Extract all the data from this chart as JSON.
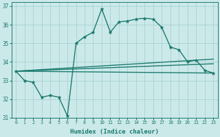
{
  "xlabel": "Humidex (Indice chaleur)",
  "bg_color": "#cce9e9",
  "grid_color": "#a8d0d0",
  "line_color": "#1a7a6e",
  "xlim": [
    -0.5,
    23.5
  ],
  "ylim": [
    31,
    37.2
  ],
  "xticks": [
    0,
    1,
    2,
    3,
    4,
    5,
    6,
    7,
    8,
    9,
    10,
    11,
    12,
    13,
    14,
    15,
    16,
    17,
    18,
    19,
    20,
    21,
    22,
    23
  ],
  "yticks": [
    31,
    32,
    33,
    34,
    35,
    36,
    37
  ],
  "series": [
    {
      "x": [
        0,
        1,
        2,
        3,
        4,
        5,
        6,
        7,
        8,
        9,
        10,
        11,
        12,
        13,
        14,
        15,
        16,
        17,
        18,
        19,
        20,
        21,
        22,
        23
      ],
      "y": [
        33.5,
        33.0,
        32.9,
        32.1,
        32.2,
        32.1,
        31.1,
        35.0,
        35.35,
        35.6,
        36.85,
        35.6,
        36.15,
        36.2,
        36.3,
        36.35,
        36.3,
        35.85,
        34.8,
        34.65,
        34.0,
        34.1,
        33.55,
        33.4
      ],
      "marker": "*",
      "ms": 3.5,
      "lw": 1.0
    },
    {
      "x": [
        0,
        23
      ],
      "y": [
        33.5,
        33.4
      ],
      "marker": null,
      "ms": 0,
      "lw": 1.0
    },
    {
      "x": [
        0,
        23
      ],
      "y": [
        33.5,
        34.15
      ],
      "marker": null,
      "ms": 0,
      "lw": 1.0
    },
    {
      "x": [
        0,
        23
      ],
      "y": [
        33.5,
        33.9
      ],
      "marker": null,
      "ms": 0,
      "lw": 1.0
    }
  ]
}
